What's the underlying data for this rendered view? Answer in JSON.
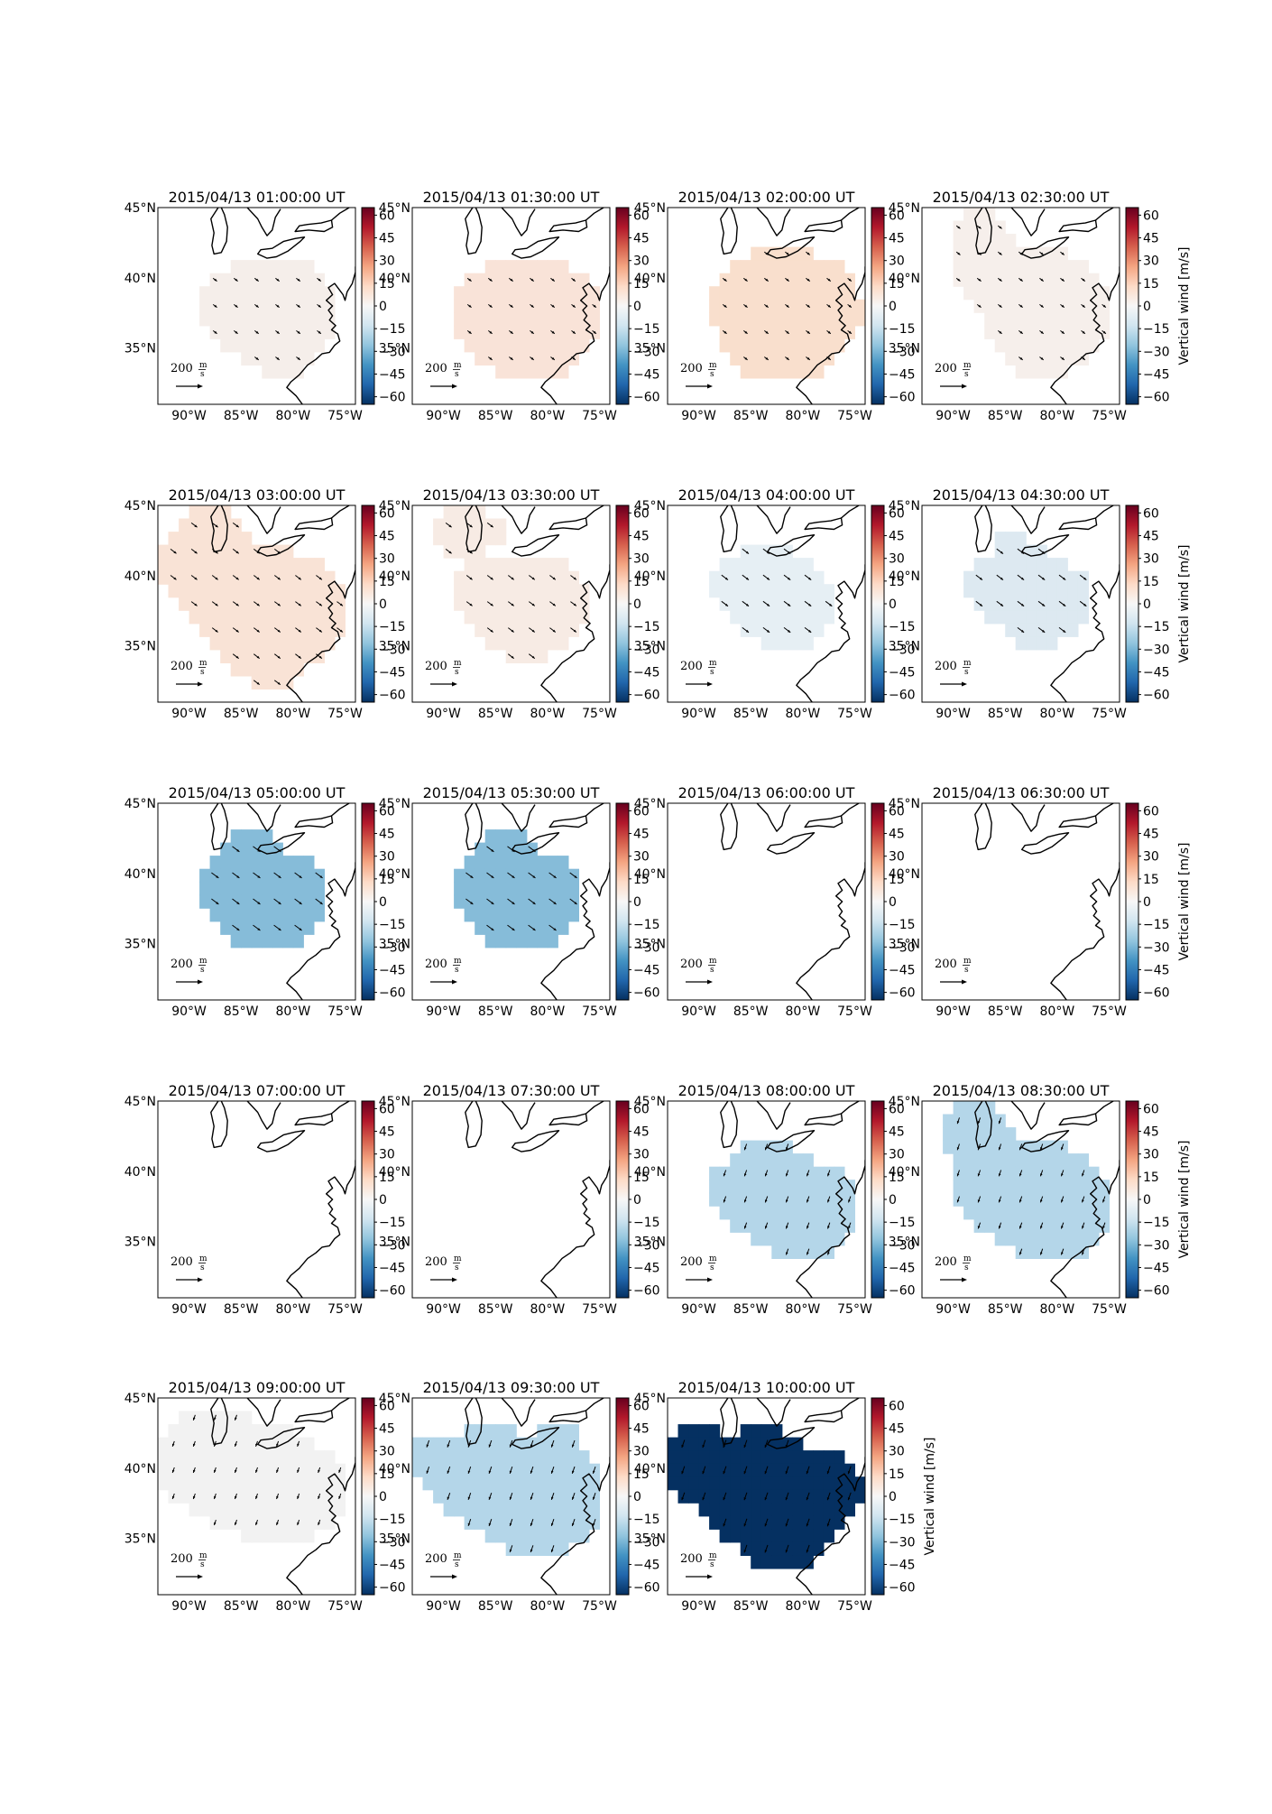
{
  "figure": {
    "colorbar_label": "Vertical wind [m/s]",
    "colorbar_ticks": [
      "60",
      "45",
      "30",
      "15",
      "0",
      "−15",
      "−30",
      "−45",
      "−60"
    ],
    "colorbar_range": [
      -65,
      65
    ],
    "colormap": [
      "#67001f",
      "#b2182b",
      "#d6604d",
      "#f4a582",
      "#fddbc7",
      "#f7f7f7",
      "#d1e5f0",
      "#92c5de",
      "#4393c3",
      "#2166ac",
      "#053061"
    ],
    "lat_ticks": [
      "45°N",
      "40°N",
      "35°N"
    ],
    "lon_ticks": [
      "90°W",
      "85°W",
      "80°W",
      "75°W"
    ],
    "quiver_key": {
      "label": "200",
      "unit_num": "m",
      "unit_den": "s"
    },
    "line_color": "#000000"
  },
  "panels": [
    {
      "title": "2015/04/13 01:00:00 UT",
      "fill": "#f5eeea",
      "region": "A",
      "arrows": "SE",
      "arrow_scale": 0.6,
      "colorbar_label_shown": false
    },
    {
      "title": "2015/04/13 01:30:00 UT",
      "fill": "#f9e3d8",
      "region": "B",
      "arrows": "SE",
      "arrow_scale": 0.6,
      "colorbar_label_shown": false
    },
    {
      "title": "2015/04/13 02:00:00 UT",
      "fill": "#f9dfcd",
      "region": "C",
      "arrows": "SE",
      "arrow_scale": 0.6,
      "colorbar_label_shown": false
    },
    {
      "title": "2015/04/13 02:30:00 UT",
      "fill": "#f6efeb",
      "region": "D",
      "arrows": "SE",
      "arrow_scale": 0.6,
      "colorbar_label_shown": true
    },
    {
      "title": "2015/04/13 03:00:00 UT",
      "fill": "#f9e3d6",
      "region": "E",
      "arrows": "SE",
      "arrow_scale": 0.9,
      "colorbar_label_shown": false
    },
    {
      "title": "2015/04/13 03:30:00 UT",
      "fill": "#f7ebe4",
      "region": "F",
      "arrows": "SE",
      "arrow_scale": 0.9,
      "colorbar_label_shown": false
    },
    {
      "title": "2015/04/13 04:00:00 UT",
      "fill": "#e6eff4",
      "region": "G",
      "arrows": "SE",
      "arrow_scale": 1.0,
      "colorbar_label_shown": false
    },
    {
      "title": "2015/04/13 04:30:00 UT",
      "fill": "#dde9f1",
      "region": "H",
      "arrows": "SE",
      "arrow_scale": 1.0,
      "colorbar_label_shown": true
    },
    {
      "title": "2015/04/13 05:00:00 UT",
      "fill": "#86bcd9",
      "region": "I",
      "arrows": "SE",
      "arrow_scale": 1.1,
      "colorbar_label_shown": false
    },
    {
      "title": "2015/04/13 05:30:00 UT",
      "fill": "#86bcd9",
      "region": "I",
      "arrows": "SE",
      "arrow_scale": 1.1,
      "colorbar_label_shown": false
    },
    {
      "title": "2015/04/13 06:00:00 UT",
      "fill": "",
      "region": "",
      "arrows": "",
      "arrow_scale": 0,
      "colorbar_label_shown": false
    },
    {
      "title": "2015/04/13 06:30:00 UT",
      "fill": "",
      "region": "",
      "arrows": "",
      "arrow_scale": 0,
      "colorbar_label_shown": true
    },
    {
      "title": "2015/04/13 07:00:00 UT",
      "fill": "",
      "region": "",
      "arrows": "",
      "arrow_scale": 0,
      "colorbar_label_shown": false
    },
    {
      "title": "2015/04/13 07:30:00 UT",
      "fill": "",
      "region": "",
      "arrows": "",
      "arrow_scale": 0,
      "colorbar_label_shown": false
    },
    {
      "title": "2015/04/13 08:00:00 UT",
      "fill": "#b4d6e9",
      "region": "J",
      "arrows": "SW",
      "arrow_scale": 0.8,
      "colorbar_label_shown": false
    },
    {
      "title": "2015/04/13 08:30:00 UT",
      "fill": "#b4d6e9",
      "region": "K",
      "arrows": "SW",
      "arrow_scale": 0.8,
      "colorbar_label_shown": true
    },
    {
      "title": "2015/04/13 09:00:00 UT",
      "fill": "#f2f2f2",
      "region": "L",
      "arrows": "SW",
      "arrow_scale": 0.7,
      "colorbar_label_shown": false
    },
    {
      "title": "2015/04/13 09:30:00 UT",
      "fill": "#b4d6e9",
      "region": "M",
      "arrows": "SW",
      "arrow_scale": 0.9,
      "colorbar_label_shown": false
    },
    {
      "title": "2015/04/13 10:00:00 UT",
      "fill": "#053061",
      "region": "N",
      "arrows": "SW",
      "arrow_scale": 1.0,
      "colorbar_label_shown": true
    }
  ]
}
